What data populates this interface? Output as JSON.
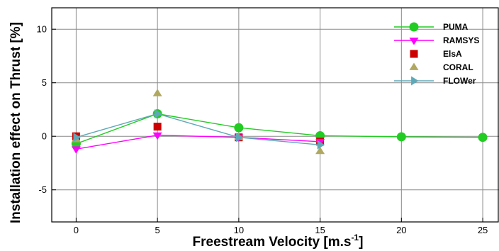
{
  "chart_data": {
    "type": "line",
    "xlabel": "Freestream Velocity [m.s",
    "xlabel_superscript": "-1",
    "xlabel_suffix": "]",
    "ylabel": "Installation effect on Thrust [%]",
    "xlim": [
      -1.5,
      26
    ],
    "ylim": [
      -8,
      12
    ],
    "xticks": [
      0,
      5,
      10,
      15,
      20,
      25
    ],
    "yticks": [
      -5,
      0,
      5,
      10
    ],
    "grid": true,
    "legend_position": "top-right",
    "series": [
      {
        "name": "PUMA",
        "color": "#22cc22",
        "marker": "circle",
        "line": true,
        "x": [
          0,
          5,
          10,
          15,
          20,
          25
        ],
        "y": [
          -0.7,
          2.1,
          0.8,
          0.05,
          -0.05,
          -0.1
        ]
      },
      {
        "name": "RAMSYS",
        "color": "#ff00ff",
        "marker": "triangle-down",
        "line": true,
        "x": [
          0,
          5,
          10,
          15
        ],
        "y": [
          -1.2,
          0.1,
          -0.1,
          -0.5
        ]
      },
      {
        "name": "ElsA",
        "color": "#cc0000",
        "marker": "square",
        "line": false,
        "x": [
          0,
          5,
          10,
          15
        ],
        "y": [
          0.0,
          0.9,
          -0.1,
          -0.5
        ]
      },
      {
        "name": "CORAL",
        "color": "#b0a860",
        "marker": "triangle-up",
        "line": false,
        "x": [
          0,
          5,
          10,
          15
        ],
        "y": [
          -0.3,
          4.0,
          -0.1,
          -1.4
        ]
      },
      {
        "name": "FLOWer",
        "color": "#5fa8b8",
        "marker": "triangle-right",
        "line": true,
        "x": [
          0,
          5,
          10,
          15
        ],
        "y": [
          -0.1,
          2.1,
          -0.1,
          -0.8
        ]
      }
    ]
  }
}
